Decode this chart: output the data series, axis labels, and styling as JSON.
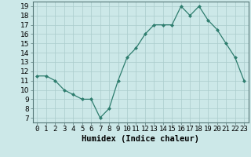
{
  "x": [
    0,
    1,
    2,
    3,
    4,
    5,
    6,
    7,
    8,
    9,
    10,
    11,
    12,
    13,
    14,
    15,
    16,
    17,
    18,
    19,
    20,
    21,
    22,
    23
  ],
  "y": [
    11.5,
    11.5,
    11.0,
    10.0,
    9.5,
    9.0,
    9.0,
    7.0,
    8.0,
    11.0,
    13.5,
    14.5,
    16.0,
    17.0,
    17.0,
    17.0,
    19.0,
    18.0,
    19.0,
    17.5,
    16.5,
    15.0,
    13.5,
    11.0
  ],
  "xlabel": "Humidex (Indice chaleur)",
  "xlim": [
    -0.5,
    23.5
  ],
  "ylim": [
    6.5,
    19.5
  ],
  "yticks": [
    7,
    8,
    9,
    10,
    11,
    12,
    13,
    14,
    15,
    16,
    17,
    18,
    19
  ],
  "xtick_labels": [
    "0",
    "1",
    "2",
    "3",
    "4",
    "5",
    "6",
    "7",
    "8",
    "9",
    "10",
    "11",
    "12",
    "13",
    "14",
    "15",
    "16",
    "17",
    "18",
    "19",
    "20",
    "21",
    "22",
    "23"
  ],
  "line_color": "#2e7d6e",
  "marker_color": "#2e7d6e",
  "bg_color": "#cce8e8",
  "grid_color": "#aacccc",
  "xlabel_fontsize": 7.5,
  "tick_fontsize": 6.5
}
